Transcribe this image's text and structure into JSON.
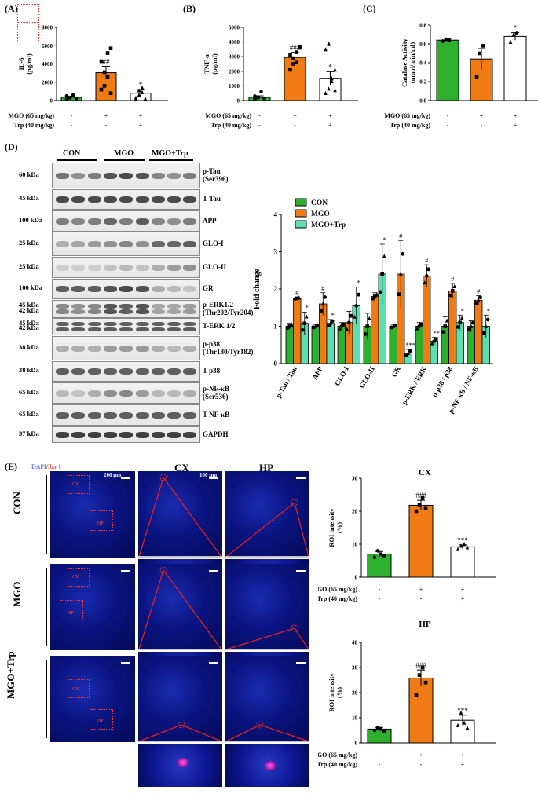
{
  "panels": {
    "A": "(A)",
    "B": "(B)",
    "C": "(C)",
    "D": "(D)",
    "E": "(E)"
  },
  "treatments": {
    "mgo_label": "MGO (65 mg/kg)",
    "trp_label": "Trp (40 mg/kg)",
    "mgo_row": [
      "-",
      "+",
      "+"
    ],
    "trp_row": [
      "-",
      "-",
      "+"
    ]
  },
  "colors": {
    "con": "#2db02d",
    "mgo": "#f07a14",
    "mgo_trp_open": "#ffffff",
    "mgo_trp_teal": "#5ce0b0",
    "red_lines": "#e02020"
  },
  "chart_data": [
    {
      "id": "A",
      "type": "bar",
      "categories": [
        "CON",
        "MGO",
        "MGO+Trp"
      ],
      "values": [
        350,
        3050,
        800
      ],
      "errors": [
        120,
        700,
        400
      ],
      "ylabel": "IL-6\n(pg/ml)",
      "yticks": [
        0,
        2000,
        4000,
        6000,
        8000
      ],
      "ylim": [
        0,
        8000
      ],
      "annotations": [
        "",
        "##",
        "*"
      ],
      "points": [
        [
          100,
          300,
          600,
          200,
          500,
          300
        ],
        [
          1200,
          3100,
          5200,
          5700,
          4300,
          1600,
          2600,
          800
        ],
        [
          300,
          1100,
          1400,
          200,
          100,
          600,
          900
        ]
      ]
    },
    {
      "id": "B",
      "type": "bar",
      "categories": [
        "CON",
        "MGO",
        "MGO+Trp"
      ],
      "values": [
        220,
        2950,
        1520
      ],
      "errors": [
        100,
        350,
        450
      ],
      "ylabel": "TNF-α\n(pg/ml)",
      "yticks": [
        0,
        1000,
        2000,
        3000,
        4000,
        5000
      ],
      "ylim": [
        0,
        5000
      ],
      "annotations": [
        "",
        "###",
        "*"
      ],
      "points": [
        [
          100,
          200,
          600,
          150,
          300,
          200
        ],
        [
          2100,
          2900,
          3300,
          3700,
          3100,
          2500,
          2600,
          3600
        ],
        [
          500,
          800,
          1500,
          2100,
          3500,
          3900,
          1300,
          700
        ]
      ]
    },
    {
      "id": "C",
      "type": "bar",
      "categories": [
        "CON",
        "MGO",
        "MGO+Trp"
      ],
      "values": [
        0.64,
        0.44,
        0.68
      ],
      "errors": [
        0.02,
        0.11,
        0.04
      ],
      "ylabel": "Catalase Activity\n(nmol/min/ml)",
      "yticks": [
        0.0,
        0.2,
        0.4,
        0.6,
        0.8
      ],
      "ylim": [
        0,
        0.8
      ],
      "annotations": [
        "",
        "",
        "*"
      ],
      "points": [
        [
          0.63,
          0.65,
          0.64
        ],
        [
          0.25,
          0.5,
          0.58
        ],
        [
          0.62,
          0.7,
          0.72
        ]
      ]
    },
    {
      "id": "D",
      "type": "bar",
      "ylabel": "Fold change",
      "yticks": [
        0,
        1,
        2,
        3,
        4
      ],
      "ylim": [
        0,
        4
      ],
      "legend": [
        "CON",
        "MGO",
        "MGO+Trp"
      ],
      "categories": [
        "p-Tau / Tau",
        "APP",
        "GLO-I",
        "GLO-II",
        "GR",
        "p-ERK / ERK",
        "p-p38 / p38",
        "p-NF-κB / NF-κB"
      ],
      "series": [
        {
          "name": "CON",
          "values": [
            1.0,
            1.0,
            1.0,
            1.0,
            1.0,
            1.0,
            1.0,
            1.0
          ],
          "errors": [
            0.08,
            0.05,
            0.1,
            0.35,
            0.05,
            0.1,
            0.25,
            0.15
          ]
        },
        {
          "name": "MGO",
          "values": [
            1.75,
            1.6,
            1.1,
            1.8,
            2.4,
            2.35,
            1.95,
            1.7
          ],
          "errors": [
            0.03,
            0.3,
            0.3,
            0.1,
            0.9,
            0.3,
            0.2,
            0.12
          ]
        },
        {
          "name": "MGO+Trp",
          "values": [
            1.08,
            1.08,
            1.55,
            2.4,
            0.28,
            0.6,
            1.1,
            1.0
          ],
          "errors": [
            0.3,
            0.1,
            0.5,
            0.8,
            0.1,
            0.1,
            0.2,
            0.3
          ]
        }
      ],
      "annotations": {
        "MGO": [
          "#",
          "#",
          "",
          "",
          "#",
          "#",
          "#",
          "#"
        ],
        "MGO+Trp": [
          "*",
          "*",
          "*",
          "*",
          "***",
          "**",
          "*",
          "*"
        ]
      }
    },
    {
      "id": "E-CX",
      "type": "bar",
      "title": "CX",
      "categories": [
        "CON",
        "MGO",
        "MGO+Trp"
      ],
      "values": [
        7.0,
        21.8,
        9.2
      ],
      "errors": [
        0.8,
        1.5,
        0.6
      ],
      "ylabel": "ROI intensity\n(%)",
      "yticks": [
        0,
        10,
        20,
        30
      ],
      "ylim": [
        0,
        30
      ],
      "annotations": [
        "",
        "###",
        "***"
      ],
      "points": [
        [
          6,
          8,
          7,
          6.5
        ],
        [
          20,
          22,
          24,
          21
        ],
        [
          8.5,
          9.5,
          10,
          9
        ]
      ]
    },
    {
      "id": "E-HP",
      "type": "bar",
      "title": "HP",
      "categories": [
        "CON",
        "MGO",
        "MGO+Trp"
      ],
      "values": [
        5.5,
        25.8,
        9.0
      ],
      "errors": [
        0.7,
        3.2,
        2.0
      ],
      "ylabel": "ROI intensity\n(%)",
      "yticks": [
        0,
        10,
        20,
        30,
        40
      ],
      "ylim": [
        0,
        40
      ],
      "annotations": [
        "",
        "###",
        "***"
      ],
      "points": [
        [
          5,
          6,
          5.5,
          4.5
        ],
        [
          19,
          27,
          30,
          24
        ],
        [
          7,
          12,
          8,
          6
        ]
      ]
    }
  ],
  "western": {
    "groups": [
      "CON",
      "MGO",
      "MGO+Trp"
    ],
    "rows": [
      {
        "kda": [
          "60 kDa"
        ],
        "label": [
          "p-Tau",
          "(Ser396)"
        ]
      },
      {
        "kda": [
          "45 kDa"
        ],
        "label": [
          "T-Tau"
        ]
      },
      {
        "kda": [
          "100 kDa"
        ],
        "label": [
          "APP"
        ]
      },
      {
        "kda": [
          "25 kDa"
        ],
        "label": [
          "GLO-I"
        ]
      },
      {
        "kda": [
          "25 kDa"
        ],
        "label": [
          "GLO-II"
        ]
      },
      {
        "kda": [
          "100 kDa"
        ],
        "label": [
          "GR"
        ]
      },
      {
        "kda": [
          "45 kDa",
          "42 kDa"
        ],
        "label": [
          "p-ERK1/2",
          "(Thr202/Tyr204)"
        ]
      },
      {
        "kda": [
          "45 kDa",
          "42 kDa"
        ],
        "label": [
          "T-ERK 1/2"
        ]
      },
      {
        "kda": [
          "38 kDa"
        ],
        "label": [
          "p-p38",
          "(Thr180/Tyr182)"
        ]
      },
      {
        "kda": [
          "38 kDa"
        ],
        "label": [
          "T-p38"
        ]
      },
      {
        "kda": [
          "65 kDa"
        ],
        "label": [
          "p-NF-κB",
          "(Ser536)"
        ]
      },
      {
        "kda": [
          "65 kDa"
        ],
        "label": [
          "T-NF-κB"
        ]
      },
      {
        "kda": [
          "37 kDa"
        ],
        "label": [
          "GAPDH"
        ]
      }
    ]
  },
  "micro": {
    "stain_dapi": "DAPI",
    "stain_sep": "/",
    "stain_iba": "Iba-1",
    "scale_low": "200 μm",
    "scale_high": "100 μm",
    "col_cx": "CX",
    "col_hp": "HP",
    "rows": [
      "CON",
      "MGO",
      "MGO+Trp"
    ],
    "box_cx": "CX",
    "box_hp": "HP"
  }
}
